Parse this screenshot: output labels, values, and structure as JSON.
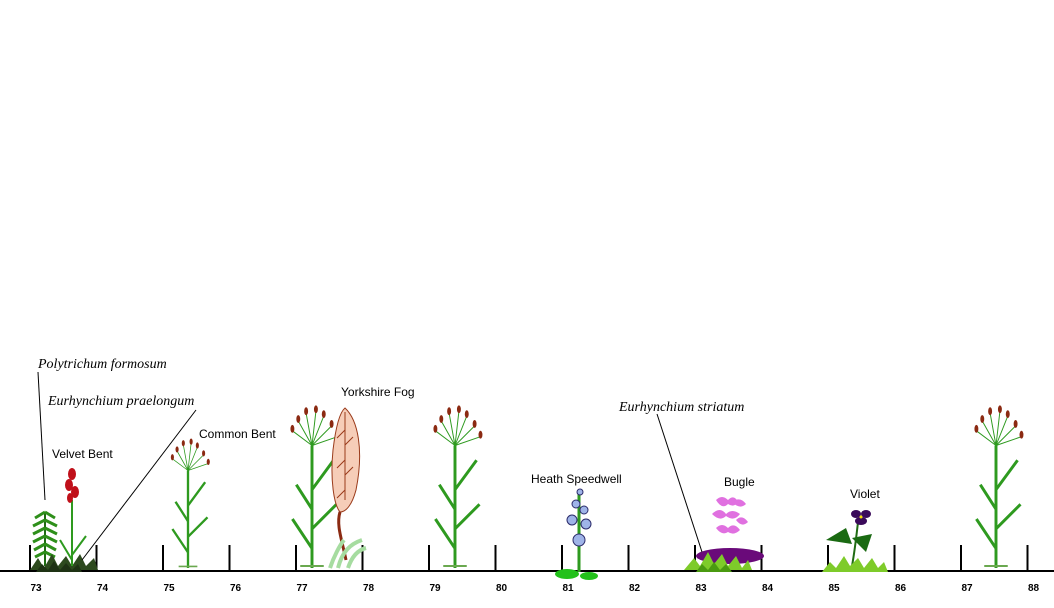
{
  "transect": {
    "ticks": [
      "73",
      "74",
      "75",
      "76",
      "77",
      "78",
      "79",
      "80",
      "81",
      "82",
      "83",
      "84",
      "85",
      "86",
      "87",
      "88"
    ]
  },
  "labels": {
    "polytrichum": "Polytrichum formosum",
    "eurhynchium_praelongum": "Eurhynchium praelongum",
    "velvet_bent": "Velvet Bent",
    "common_bent": "Common Bent",
    "yorkshire_fog": "Yorkshire Fog",
    "heath_speedwell": "Heath Speedwell",
    "eurhynchium_striatum": "Eurhynchium striatum",
    "bugle": "Bugle",
    "violet": "Violet"
  },
  "colors": {
    "grass_green": "#2e9a1f",
    "seed_brown": "#8b2a12",
    "moss_dark": "#2d4a1e",
    "moss_light": "#7ecb2a",
    "velvet_red": "#c0101a",
    "fog_fill": "#f6cdb8",
    "fog_stroke": "#9a3a1a",
    "speedwell_blue": "#9fb4e8",
    "bugle_pink": "#e070e0",
    "violet_purple": "#3a0a5a",
    "striatum_purple": "#6a0a7a"
  }
}
